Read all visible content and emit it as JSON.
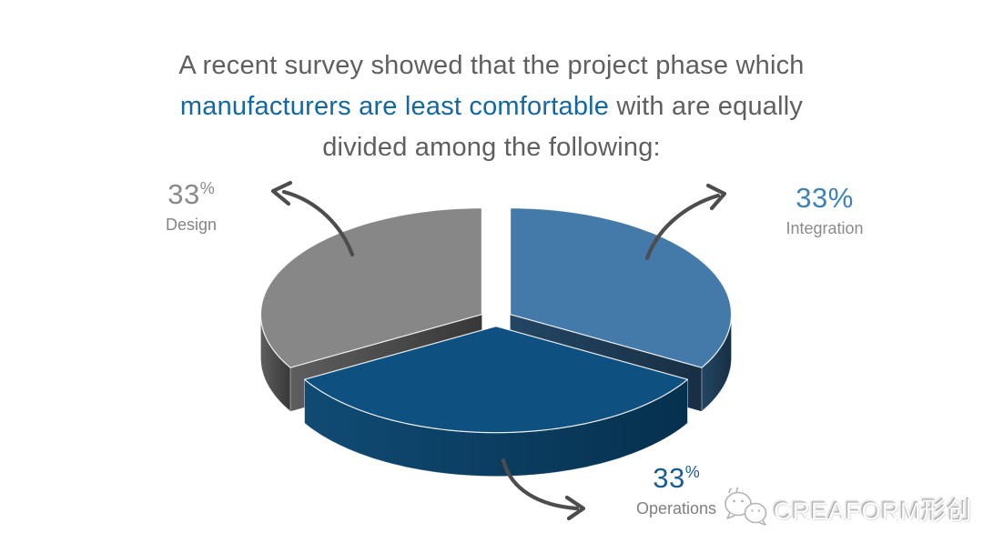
{
  "page": {
    "background": "#ffffff"
  },
  "title": {
    "line1": "A recent survey showed that the project phase which",
    "line2_highlight": "manufacturers are least comfortable",
    "line2_rest": " with are equally",
    "line3": "divided among the following:",
    "text_color": "#5f5f5f",
    "highlight_color": "#1368a4"
  },
  "chart_data": {
    "type": "pie",
    "is_3d": true,
    "exploded": true,
    "title": "",
    "categories": [
      "Design",
      "Integration",
      "Operations"
    ],
    "values": [
      33,
      33,
      33
    ],
    "unit": "%",
    "legend_position": "callout-labels",
    "slices": [
      {
        "name": "Design",
        "value": "33",
        "unit": "%",
        "superscript_unit": true,
        "start_angle": 210,
        "end_angle": 90,
        "top_color": "#878787",
        "side_color_left": "#5e5e5e",
        "side_color_right": "#383838",
        "value_color": "#8a8a8a",
        "name_color": "#848484"
      },
      {
        "name": "Integration",
        "value": "33",
        "unit": "%",
        "superscript_unit": false,
        "start_angle": 90,
        "end_angle": -30,
        "top_color": "#447aa9",
        "side_color_left": "#234663",
        "side_color_right": "#182f44",
        "value_color": "#3e82b8",
        "name_color": "#8a8a8a"
      },
      {
        "name": "Operations",
        "value": "33",
        "unit": "%",
        "superscript_unit": true,
        "start_angle": 330,
        "end_angle": 210,
        "top_color": "#0e5080",
        "side_color_left": "#104b74",
        "side_color_right": "#06304e",
        "value_color": "#1a5d96",
        "name_color": "#7f7f7f"
      }
    ]
  },
  "watermark": {
    "text": "CREAFORM形创",
    "icon": "wechat-logo-icon"
  }
}
